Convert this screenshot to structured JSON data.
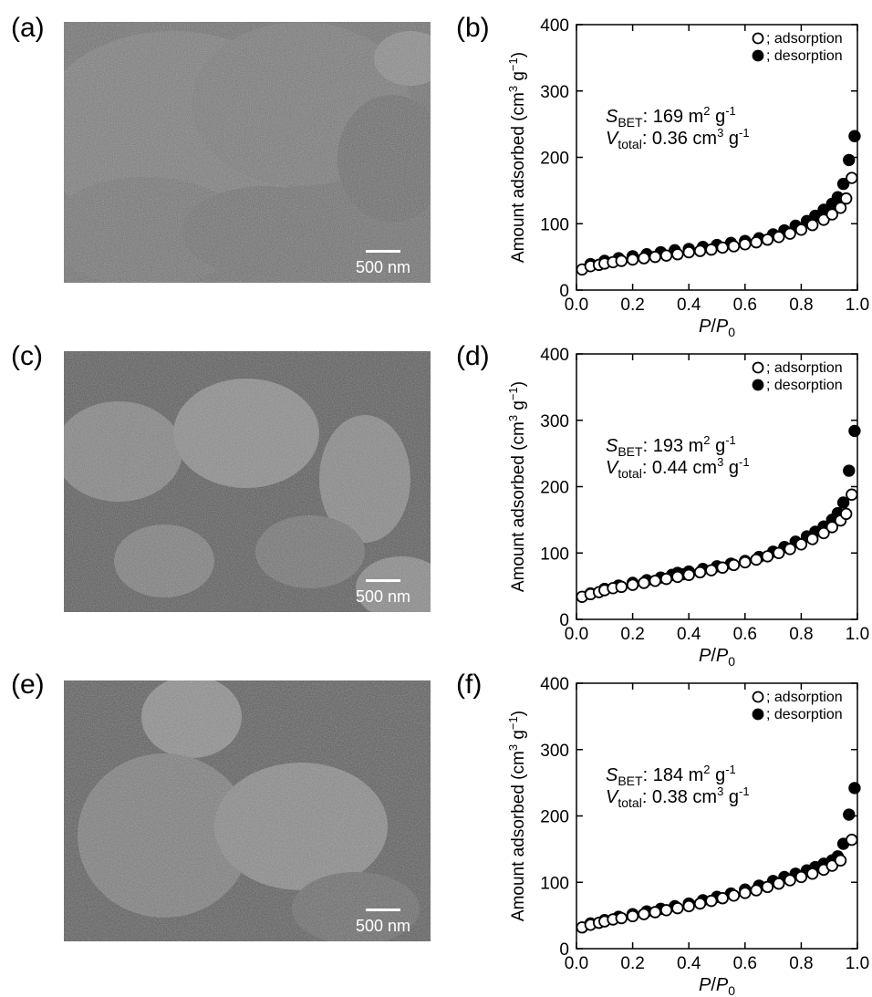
{
  "panels": [
    {
      "label": "(a)",
      "scale_text": "500 nm"
    },
    {
      "label": "(b)"
    },
    {
      "label": "(c)",
      "scale_text": "500 nm"
    },
    {
      "label": "(d)"
    },
    {
      "label": "(e)",
      "scale_text": "500 nm"
    },
    {
      "label": "(f)"
    }
  ],
  "chart_data": [
    {
      "type": "scatter",
      "panel": "(b)",
      "title": "",
      "xlabel": "P/P0",
      "ylabel": "Amount adsorbed (cm3 g-1)",
      "xlim": [
        0,
        1.0
      ],
      "ylim": [
        0,
        400
      ],
      "xticks": [
        "0.0",
        "0.2",
        "0.4",
        "0.6",
        "0.8",
        "1.0"
      ],
      "yticks": [
        "0",
        "100",
        "200",
        "300",
        "400"
      ],
      "legend_position": "top-right",
      "annotation": {
        "sbet_value": ":  169 m",
        "sbet_unit": " g",
        "vtotal_value": ": 0.36 cm",
        "vtotal_unit": " g"
      },
      "series": [
        {
          "name": "; adsorption",
          "marker": "open-circle",
          "x": [
            0.02,
            0.05,
            0.08,
            0.1,
            0.13,
            0.16,
            0.2,
            0.24,
            0.28,
            0.32,
            0.36,
            0.4,
            0.44,
            0.48,
            0.52,
            0.56,
            0.6,
            0.64,
            0.68,
            0.72,
            0.76,
            0.8,
            0.84,
            0.88,
            0.91,
            0.94,
            0.96,
            0.98
          ],
          "y": [
            31,
            36,
            38,
            40,
            42,
            44,
            46,
            48,
            50,
            52,
            54,
            57,
            59,
            61,
            64,
            66,
            69,
            72,
            76,
            80,
            85,
            91,
            98,
            106,
            114,
            124,
            138,
            169
          ]
        },
        {
          "name": "; desorption",
          "marker": "filled-circle",
          "x": [
            0.05,
            0.1,
            0.15,
            0.2,
            0.25,
            0.3,
            0.35,
            0.4,
            0.45,
            0.5,
            0.55,
            0.6,
            0.65,
            0.7,
            0.74,
            0.78,
            0.82,
            0.85,
            0.88,
            0.91,
            0.93,
            0.95,
            0.97,
            0.99
          ],
          "y": [
            39,
            44,
            48,
            51,
            54,
            57,
            60,
            62,
            65,
            68,
            71,
            74,
            78,
            84,
            90,
            97,
            104,
            112,
            121,
            130,
            140,
            160,
            196,
            232
          ]
        }
      ]
    },
    {
      "type": "scatter",
      "panel": "(d)",
      "title": "",
      "xlabel": "P/P0",
      "ylabel": "Amount adsorbed (cm3 g-1)",
      "xlim": [
        0,
        1.0
      ],
      "ylim": [
        0,
        400
      ],
      "xticks": [
        "0.0",
        "0.2",
        "0.4",
        "0.6",
        "0.8",
        "1.0"
      ],
      "yticks": [
        "0",
        "100",
        "200",
        "300",
        "400"
      ],
      "legend_position": "top-right",
      "annotation": {
        "sbet_value": ":  193 m",
        "sbet_unit": " g",
        "vtotal_value": ": 0.44 cm",
        "vtotal_unit": " g"
      },
      "series": [
        {
          "name": "; adsorption",
          "marker": "open-circle",
          "x": [
            0.02,
            0.05,
            0.08,
            0.1,
            0.13,
            0.16,
            0.2,
            0.24,
            0.28,
            0.32,
            0.36,
            0.4,
            0.44,
            0.48,
            0.52,
            0.56,
            0.6,
            0.64,
            0.68,
            0.72,
            0.76,
            0.8,
            0.84,
            0.88,
            0.91,
            0.94,
            0.96,
            0.98
          ],
          "y": [
            34,
            38,
            41,
            44,
            47,
            49,
            52,
            55,
            58,
            61,
            64,
            67,
            71,
            74,
            78,
            82,
            86,
            90,
            95,
            100,
            106,
            113,
            121,
            130,
            139,
            149,
            159,
            188
          ]
        },
        {
          "name": "; desorption",
          "marker": "filled-circle",
          "x": [
            0.05,
            0.1,
            0.15,
            0.2,
            0.25,
            0.3,
            0.34,
            0.36,
            0.38,
            0.4,
            0.45,
            0.5,
            0.55,
            0.6,
            0.65,
            0.7,
            0.74,
            0.78,
            0.82,
            0.85,
            0.88,
            0.91,
            0.93,
            0.95,
            0.97,
            0.99
          ],
          "y": [
            39,
            46,
            51,
            55,
            59,
            63,
            67,
            70,
            68,
            72,
            76,
            80,
            84,
            88,
            94,
            102,
            109,
            117,
            125,
            132,
            140,
            150,
            160,
            176,
            224,
            284
          ]
        }
      ]
    },
    {
      "type": "scatter",
      "panel": "(f)",
      "title": "",
      "xlabel": "P/P0",
      "ylabel": "Amount adsorbed (cm3 g-1)",
      "xlim": [
        0,
        1.0
      ],
      "ylim": [
        0,
        400
      ],
      "xticks": [
        "0.0",
        "0.2",
        "0.4",
        "0.6",
        "0.8",
        "1.0"
      ],
      "yticks": [
        "0",
        "100",
        "200",
        "300",
        "400"
      ],
      "legend_position": "top-right",
      "annotation": {
        "sbet_value": ":  184 m",
        "sbet_unit": " g",
        "vtotal_value": ": 0.38 cm",
        "vtotal_unit": " g"
      },
      "series": [
        {
          "name": "; adsorption",
          "marker": "open-circle",
          "x": [
            0.02,
            0.05,
            0.08,
            0.1,
            0.13,
            0.16,
            0.2,
            0.24,
            0.28,
            0.32,
            0.36,
            0.4,
            0.44,
            0.48,
            0.52,
            0.56,
            0.6,
            0.64,
            0.68,
            0.72,
            0.76,
            0.8,
            0.84,
            0.88,
            0.91,
            0.94,
            0.98
          ],
          "y": [
            32,
            36,
            39,
            41,
            44,
            46,
            49,
            52,
            55,
            58,
            61,
            64,
            68,
            72,
            76,
            80,
            84,
            88,
            93,
            98,
            103,
            108,
            113,
            119,
            125,
            133,
            164
          ]
        },
        {
          "name": "; desorption",
          "marker": "filled-circle",
          "x": [
            0.05,
            0.1,
            0.15,
            0.2,
            0.25,
            0.3,
            0.35,
            0.4,
            0.45,
            0.5,
            0.55,
            0.6,
            0.65,
            0.7,
            0.74,
            0.78,
            0.82,
            0.85,
            0.88,
            0.91,
            0.93,
            0.95,
            0.97,
            0.99
          ],
          "y": [
            38,
            43,
            48,
            52,
            56,
            60,
            64,
            68,
            73,
            78,
            83,
            89,
            95,
            102,
            108,
            113,
            118,
            123,
            128,
            133,
            139,
            158,
            202,
            242
          ]
        }
      ]
    }
  ]
}
